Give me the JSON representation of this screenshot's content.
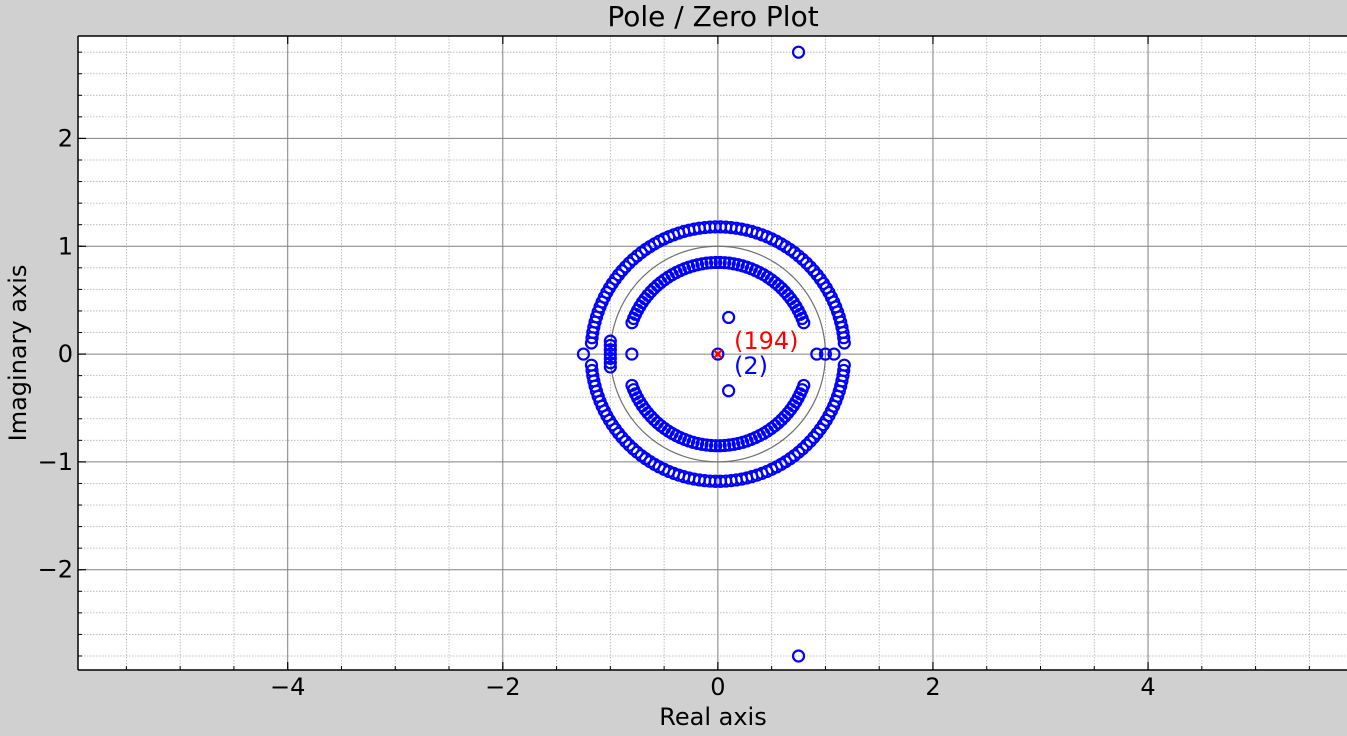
{
  "chart_data": {
    "type": "scatter",
    "title": "Pole / Zero Plot",
    "xlabel": "Real axis",
    "ylabel": "Imaginary axis",
    "xlim": [
      -5.95,
      5.85
    ],
    "ylim": [
      -2.93,
      2.95
    ],
    "xticks": [
      -4,
      -2,
      0,
      2,
      4
    ],
    "xtick_labels": [
      "−4",
      "−2",
      "0",
      "2",
      "4"
    ],
    "yticks": [
      -2,
      -1,
      0,
      1,
      2
    ],
    "ytick_labels": [
      "−2",
      "−1",
      "0",
      "1",
      "2"
    ],
    "grid": true,
    "unit_circle": true,
    "zeros_outer_ring": {
      "radius": 1.18,
      "count": 72,
      "start_deg": 5,
      "end_deg": 175
    },
    "zeros_inner_ring": {
      "radius": 0.85,
      "count": 50,
      "start_deg": 20,
      "end_deg": 160
    },
    "zeros_extra": [
      [
        -1.25,
        0
      ],
      [
        -0.8,
        0
      ],
      [
        0.92,
        0
      ],
      [
        1.0,
        0
      ],
      [
        1.08,
        0
      ],
      [
        0.1,
        0.34
      ],
      [
        0.1,
        -0.34
      ],
      [
        0.75,
        2.8
      ],
      [
        0.75,
        -2.8
      ],
      [
        -1.0,
        0.12
      ],
      [
        -1.0,
        0.08
      ],
      [
        -1.0,
        0.04
      ],
      [
        -1.0,
        0.0
      ],
      [
        -1.0,
        -0.04
      ],
      [
        -1.0,
        -0.08
      ],
      [
        -1.0,
        -0.12
      ],
      [
        0,
        0
      ]
    ],
    "poles": [
      [
        0,
        0
      ]
    ],
    "annotations": [
      {
        "text": "(194)",
        "x": 0.15,
        "y": 0.12,
        "color": "#ff0000"
      },
      {
        "text": "(2)",
        "x": 0.15,
        "y": -0.11,
        "color": "#0000ff"
      }
    ],
    "colors": {
      "zero": "#0000ff",
      "pole": "#ff0000",
      "background": "#d0d0d0",
      "plot_bg": "#ffffff"
    }
  }
}
